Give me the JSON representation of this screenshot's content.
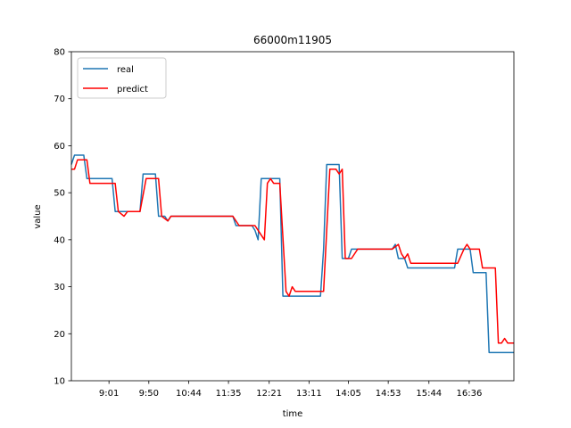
{
  "chart_data": {
    "type": "line",
    "title": "66000m11905",
    "xlabel": "time",
    "ylabel": "value",
    "ylim": [
      10,
      80
    ],
    "yticks": [
      10,
      20,
      30,
      40,
      50,
      60,
      70,
      80
    ],
    "xlim": [
      0,
      100
    ],
    "xticks": [
      {
        "x": 8.5,
        "label": "9:01"
      },
      {
        "x": 17.5,
        "label": "9:50"
      },
      {
        "x": 26.5,
        "label": "10:44"
      },
      {
        "x": 35.5,
        "label": "11:35"
      },
      {
        "x": 44.7,
        "label": "12:21"
      },
      {
        "x": 53.7,
        "label": "13:11"
      },
      {
        "x": 62.6,
        "label": "14:05"
      },
      {
        "x": 71.6,
        "label": "14:53"
      },
      {
        "x": 80.8,
        "label": "15:44"
      },
      {
        "x": 89.9,
        "label": "16:36"
      }
    ],
    "legend_position": "top-left",
    "series": [
      {
        "name": "real",
        "color": "#1f77b4",
        "points": [
          [
            0,
            56
          ],
          [
            0.7,
            58
          ],
          [
            2.8,
            58
          ],
          [
            3.5,
            53
          ],
          [
            9.2,
            53
          ],
          [
            9.9,
            46
          ],
          [
            15.5,
            46
          ],
          [
            16.2,
            54
          ],
          [
            19.0,
            54
          ],
          [
            19.7,
            45
          ],
          [
            21.1,
            45
          ],
          [
            21.8,
            44
          ],
          [
            22.5,
            45
          ],
          [
            36.5,
            45
          ],
          [
            37.2,
            43
          ],
          [
            40.8,
            43
          ],
          [
            41.5,
            42
          ],
          [
            42.2,
            40
          ],
          [
            42.9,
            53
          ],
          [
            47.1,
            53
          ],
          [
            47.8,
            28
          ],
          [
            56.3,
            28
          ],
          [
            57.0,
            38
          ],
          [
            57.7,
            56
          ],
          [
            60.5,
            56
          ],
          [
            61.2,
            36
          ],
          [
            62.6,
            36
          ],
          [
            63.3,
            38
          ],
          [
            72.5,
            38
          ],
          [
            73.2,
            39
          ],
          [
            73.9,
            36
          ],
          [
            75.3,
            36
          ],
          [
            76.0,
            34
          ],
          [
            86.6,
            34
          ],
          [
            87.3,
            38
          ],
          [
            90.1,
            38
          ],
          [
            90.8,
            33
          ],
          [
            93.7,
            33
          ],
          [
            94.4,
            16
          ],
          [
            100,
            16
          ]
        ]
      },
      {
        "name": "predict",
        "color": "#ff0000",
        "points": [
          [
            0,
            55
          ],
          [
            0.7,
            55
          ],
          [
            1.4,
            57
          ],
          [
            3.5,
            57
          ],
          [
            4.2,
            52
          ],
          [
            9.9,
            52
          ],
          [
            10.6,
            46
          ],
          [
            11.9,
            45
          ],
          [
            12.7,
            46
          ],
          [
            15.5,
            46
          ],
          [
            16.9,
            53
          ],
          [
            19.7,
            53
          ],
          [
            20.4,
            45
          ],
          [
            21.8,
            44
          ],
          [
            22.5,
            45
          ],
          [
            36.5,
            45
          ],
          [
            37.9,
            43
          ],
          [
            41.5,
            43
          ],
          [
            42.2,
            42
          ],
          [
            43.6,
            40
          ],
          [
            44.3,
            52
          ],
          [
            45.0,
            53
          ],
          [
            45.7,
            52
          ],
          [
            47.1,
            52
          ],
          [
            48.5,
            29
          ],
          [
            49.2,
            28
          ],
          [
            49.9,
            30
          ],
          [
            50.6,
            29
          ],
          [
            57.0,
            29
          ],
          [
            58.4,
            55
          ],
          [
            59.8,
            55
          ],
          [
            60.5,
            54
          ],
          [
            61.2,
            55
          ],
          [
            61.9,
            36
          ],
          [
            63.3,
            36
          ],
          [
            64.7,
            38
          ],
          [
            72.5,
            38
          ],
          [
            73.9,
            39
          ],
          [
            74.6,
            37
          ],
          [
            75.3,
            36
          ],
          [
            76.0,
            37
          ],
          [
            76.7,
            35
          ],
          [
            87.3,
            35
          ],
          [
            88.7,
            38
          ],
          [
            89.4,
            39
          ],
          [
            90.1,
            38
          ],
          [
            92.2,
            38
          ],
          [
            92.9,
            34
          ],
          [
            95.8,
            34
          ],
          [
            96.5,
            18
          ],
          [
            97.2,
            18
          ],
          [
            97.9,
            19
          ],
          [
            98.6,
            18
          ],
          [
            100,
            18
          ]
        ]
      }
    ]
  }
}
